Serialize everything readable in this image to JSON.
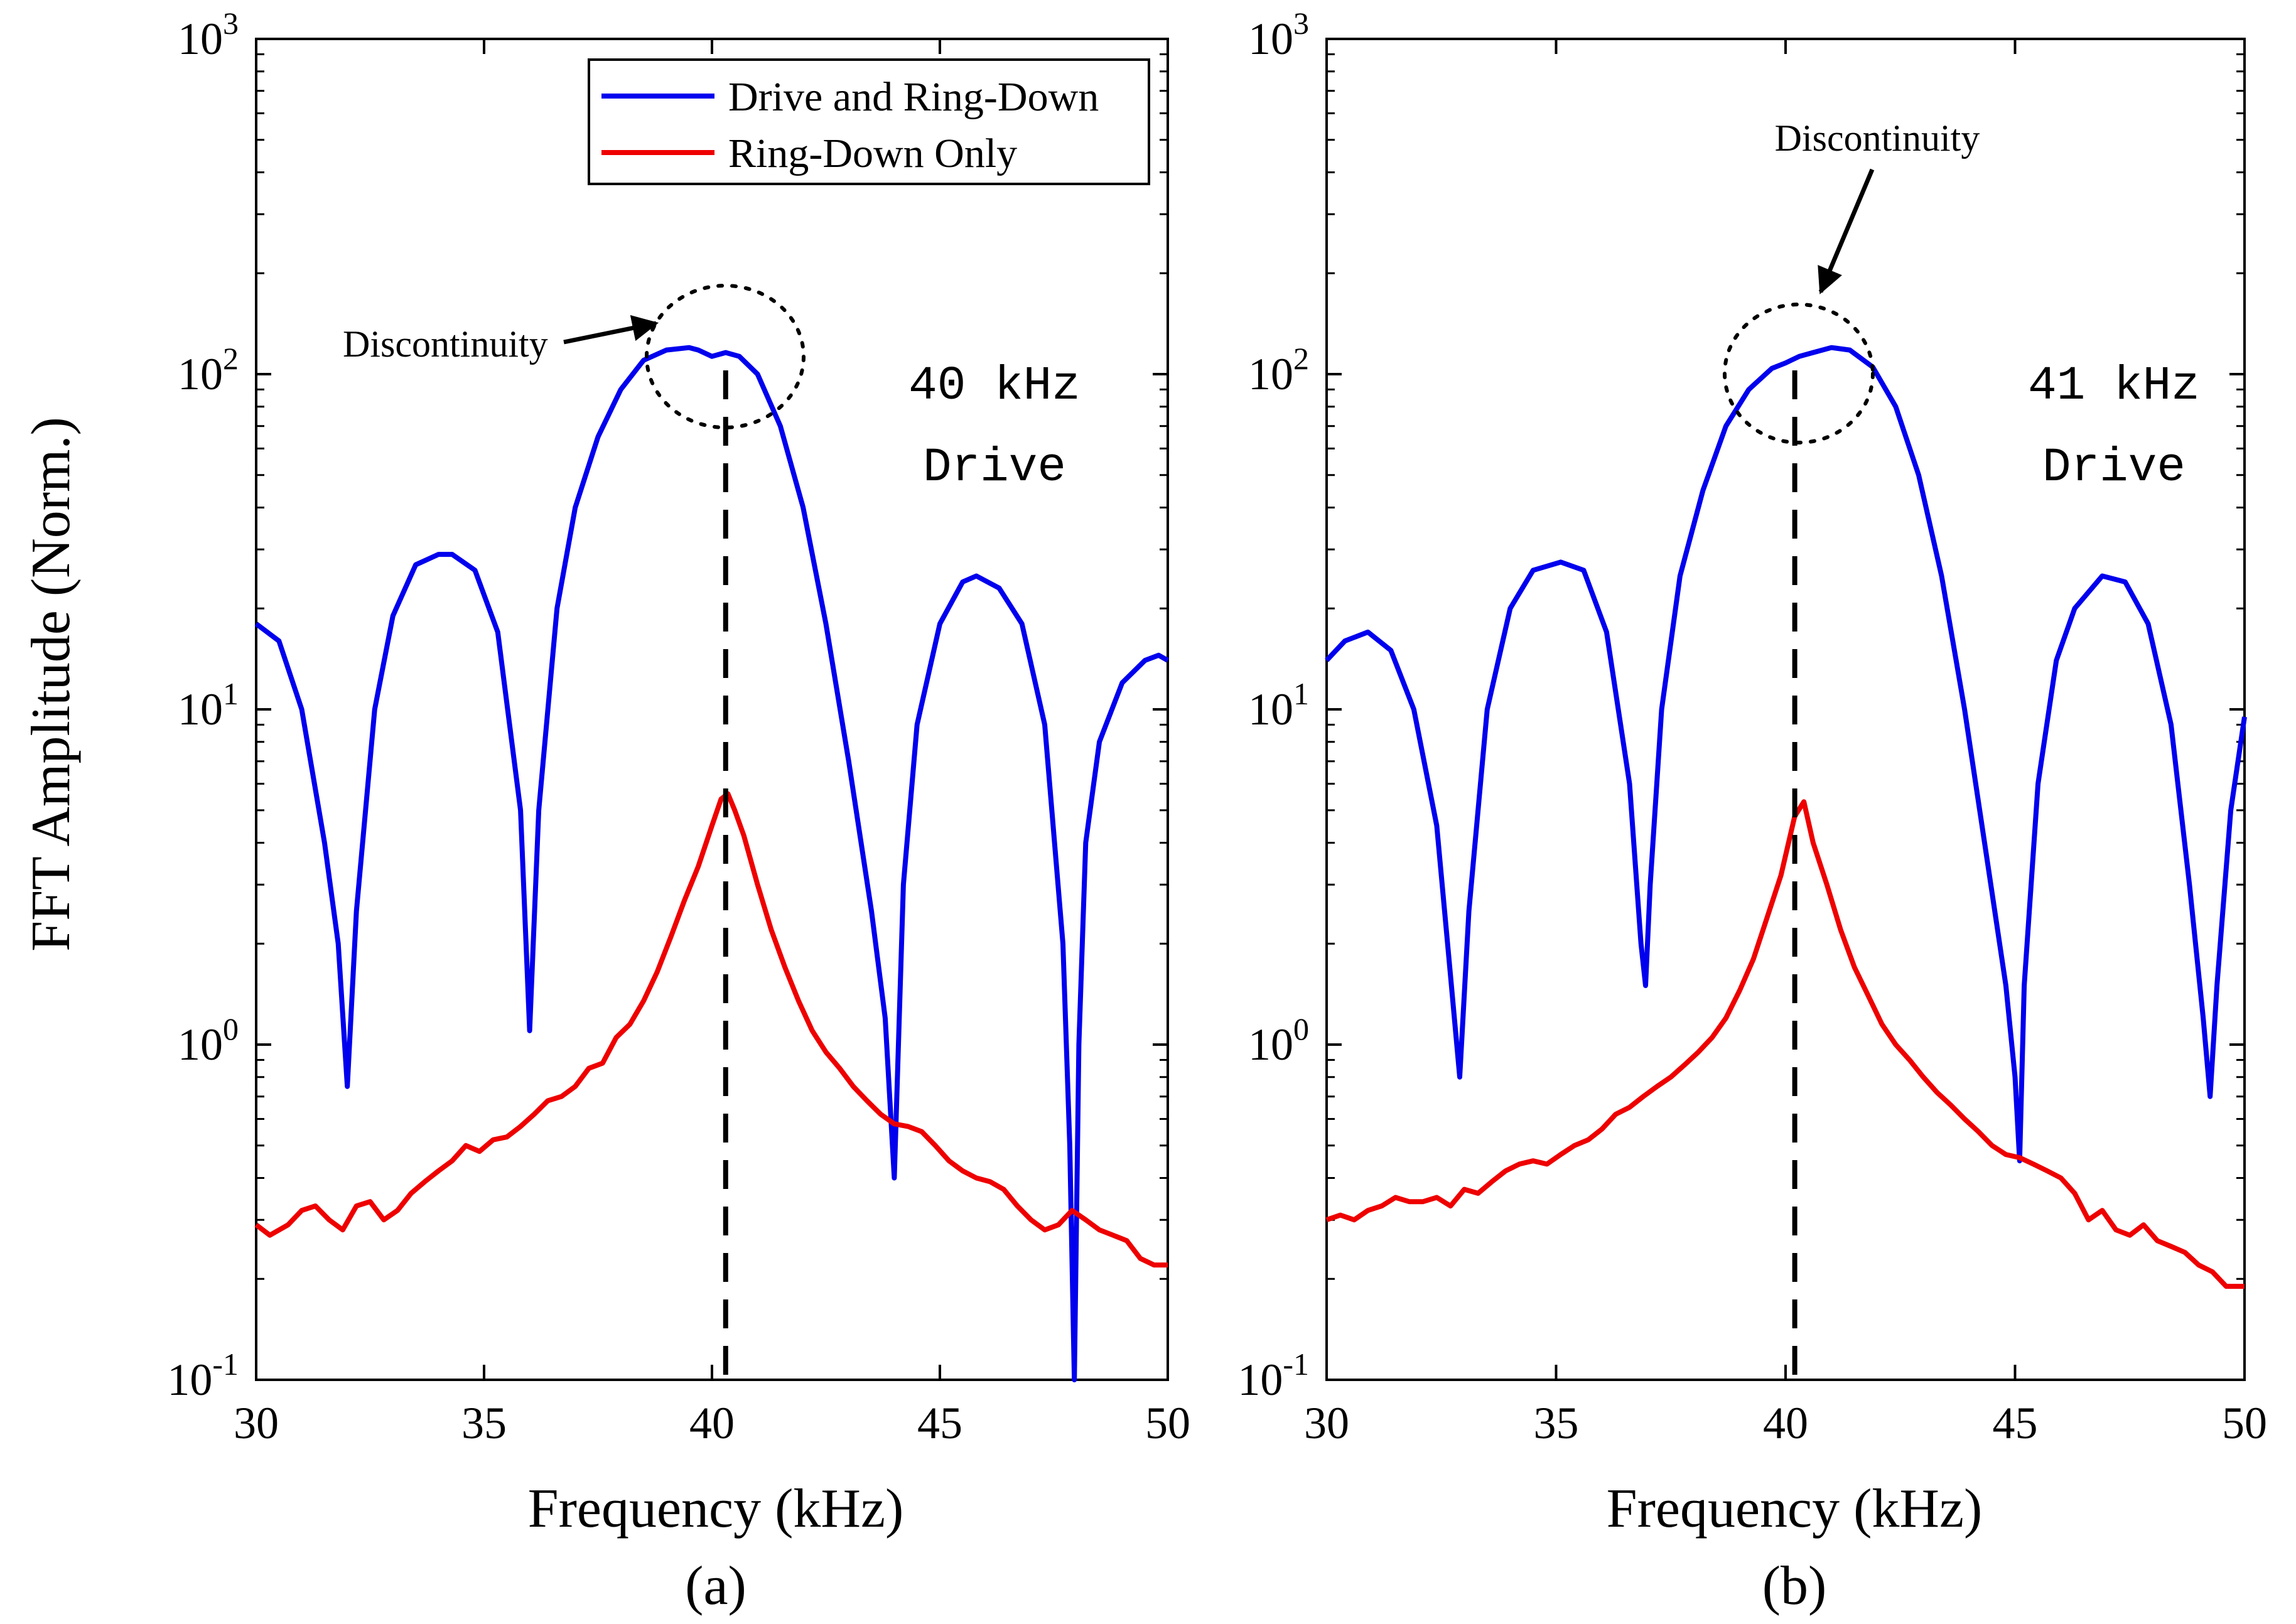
{
  "y_axis_label": "FFT Amplitude (Norm.)",
  "x_axis_label": "Frequency (kHz)",
  "legend": {
    "drive": "Drive and Ring-Down",
    "ringdown": "Ring-Down Only"
  },
  "colors": {
    "drive": "#0000ee",
    "ringdown": "#ee0000"
  },
  "chart_data": [
    {
      "type": "line",
      "panel_label": "(a)",
      "xlabel": "Frequency (kHz)",
      "ylabel": "FFT Amplitude (Norm.)",
      "xlim": [
        30,
        50
      ],
      "ylim": [
        0.1,
        1000
      ],
      "yscale": "log",
      "xticks": [
        30,
        35,
        40,
        45,
        50
      ],
      "yticks": [
        {
          "base": "10",
          "exp": "-1"
        },
        {
          "base": "10",
          "exp": "0"
        },
        {
          "base": "10",
          "exp": "1"
        },
        {
          "base": "10",
          "exp": "2"
        },
        {
          "base": "10",
          "exp": "3"
        }
      ],
      "drive_label": [
        "40 kHz",
        "Drive"
      ],
      "annotation": "Discontinuity",
      "dashed_line_x": 40.3,
      "series": [
        {
          "name": "Drive and Ring-Down",
          "color": "#0000ee",
          "x": [
            30,
            30.5,
            31,
            31.5,
            31.8,
            32.0,
            32.2,
            32.6,
            33,
            33.5,
            34,
            34.3,
            34.8,
            35.3,
            35.8,
            36.0,
            36.2,
            36.6,
            37,
            37.5,
            38,
            38.5,
            39,
            39.5,
            39.7,
            40.0,
            40.3,
            40.6,
            41,
            41.5,
            42,
            42.5,
            43,
            43.5,
            43.8,
            44.0,
            44.2,
            44.5,
            45,
            45.5,
            45.8,
            46.3,
            46.8,
            47.3,
            47.7,
            47.85,
            47.95,
            48.05,
            48.2,
            48.5,
            49,
            49.5,
            49.8,
            50
          ],
          "values": [
            18,
            16,
            10,
            4,
            2,
            0.75,
            2.5,
            10,
            19,
            27,
            29,
            29,
            26,
            17,
            5,
            1.1,
            5,
            20,
            40,
            65,
            90,
            110,
            118,
            120,
            118,
            113,
            116,
            113,
            100,
            70,
            40,
            18,
            7,
            2.5,
            1.2,
            0.4,
            3,
            9,
            18,
            24,
            25,
            23,
            18,
            9,
            2,
            0.5,
            0.1,
            1,
            4,
            8,
            12,
            14,
            14.5,
            14
          ]
        },
        {
          "name": "Ring-Down Only",
          "color": "#ee0000",
          "x": [
            30,
            30.3,
            30.7,
            31,
            31.3,
            31.6,
            31.9,
            32.2,
            32.5,
            32.8,
            33.1,
            33.4,
            33.7,
            34,
            34.3,
            34.6,
            34.9,
            35.2,
            35.5,
            35.8,
            36.1,
            36.4,
            36.7,
            37,
            37.3,
            37.6,
            37.9,
            38.2,
            38.5,
            38.8,
            39.1,
            39.4,
            39.7,
            40,
            40.2,
            40.35,
            40.5,
            40.7,
            41,
            41.3,
            41.6,
            41.9,
            42.2,
            42.5,
            42.8,
            43.1,
            43.4,
            43.7,
            44,
            44.3,
            44.6,
            44.9,
            45.2,
            45.5,
            45.8,
            46.1,
            46.4,
            46.7,
            47,
            47.3,
            47.6,
            47.9,
            48.2,
            48.5,
            48.8,
            49.1,
            49.4,
            49.7,
            50
          ],
          "values": [
            0.29,
            0.27,
            0.29,
            0.32,
            0.33,
            0.3,
            0.28,
            0.33,
            0.34,
            0.3,
            0.32,
            0.36,
            0.39,
            0.42,
            0.45,
            0.5,
            0.48,
            0.52,
            0.53,
            0.57,
            0.62,
            0.68,
            0.7,
            0.75,
            0.85,
            0.88,
            1.05,
            1.15,
            1.35,
            1.65,
            2.1,
            2.7,
            3.4,
            4.5,
            5.4,
            5.6,
            5.0,
            4.2,
            3.0,
            2.2,
            1.7,
            1.35,
            1.1,
            0.95,
            0.85,
            0.75,
            0.68,
            0.62,
            0.58,
            0.57,
            0.55,
            0.5,
            0.45,
            0.42,
            0.4,
            0.39,
            0.37,
            0.33,
            0.3,
            0.28,
            0.29,
            0.32,
            0.3,
            0.28,
            0.27,
            0.26,
            0.23,
            0.22,
            0.22
          ]
        }
      ]
    },
    {
      "type": "line",
      "panel_label": "(b)",
      "xlabel": "Frequency (kHz)",
      "ylabel": "",
      "xlim": [
        30,
        50
      ],
      "ylim": [
        0.1,
        1000
      ],
      "yscale": "log",
      "xticks": [
        30,
        35,
        40,
        45,
        50
      ],
      "yticks": [
        {
          "base": "10",
          "exp": "-1"
        },
        {
          "base": "10",
          "exp": "0"
        },
        {
          "base": "10",
          "exp": "1"
        },
        {
          "base": "10",
          "exp": "2"
        },
        {
          "base": "10",
          "exp": "3"
        }
      ],
      "drive_label": [
        "41 kHz",
        "Drive"
      ],
      "annotation": "Discontinuity",
      "dashed_line_x": 40.2,
      "series": [
        {
          "name": "Drive and Ring-Down",
          "color": "#0000ee",
          "x": [
            30,
            30.4,
            30.9,
            31.4,
            31.9,
            32.4,
            32.7,
            32.9,
            33.1,
            33.5,
            34,
            34.5,
            35.1,
            35.6,
            36.1,
            36.6,
            36.85,
            36.95,
            37.05,
            37.3,
            37.7,
            38.2,
            38.7,
            39.2,
            39.7,
            40.0,
            40.3,
            40.6,
            41,
            41.4,
            41.9,
            42.4,
            42.9,
            43.4,
            43.9,
            44.4,
            44.8,
            45.0,
            45.1,
            45.2,
            45.5,
            45.9,
            46.3,
            46.9,
            47.4,
            47.9,
            48.4,
            48.8,
            49.1,
            49.25,
            49.4,
            49.7,
            50
          ],
          "values": [
            14,
            16,
            17,
            15,
            10,
            4.5,
            1.6,
            0.8,
            2.5,
            10,
            20,
            26,
            27.5,
            26,
            17,
            6,
            2,
            1.5,
            3,
            10,
            25,
            45,
            70,
            90,
            104,
            108,
            113,
            116,
            120,
            118,
            105,
            80,
            50,
            25,
            10,
            3.5,
            1.5,
            0.8,
            0.45,
            1.5,
            6,
            14,
            20,
            25,
            24,
            18,
            9,
            3,
            1.2,
            0.7,
            1.5,
            5,
            9.5
          ]
        },
        {
          "name": "Ring-Down Only",
          "color": "#ee0000",
          "x": [
            30,
            30.3,
            30.6,
            30.9,
            31.2,
            31.5,
            31.8,
            32.1,
            32.4,
            32.7,
            33,
            33.3,
            33.6,
            33.9,
            34.2,
            34.5,
            34.8,
            35.1,
            35.4,
            35.7,
            36,
            36.3,
            36.6,
            36.9,
            37.2,
            37.5,
            37.8,
            38.1,
            38.4,
            38.7,
            39,
            39.3,
            39.6,
            39.9,
            40.2,
            40.4,
            40.6,
            40.9,
            41.2,
            41.5,
            41.8,
            42.1,
            42.4,
            42.7,
            43,
            43.3,
            43.6,
            43.9,
            44.2,
            44.5,
            44.8,
            45.1,
            45.4,
            45.7,
            46,
            46.3,
            46.6,
            46.9,
            47.2,
            47.5,
            47.8,
            48.1,
            48.4,
            48.7,
            49,
            49.3,
            49.6,
            50
          ],
          "values": [
            0.3,
            0.31,
            0.3,
            0.32,
            0.33,
            0.35,
            0.34,
            0.34,
            0.35,
            0.33,
            0.37,
            0.36,
            0.39,
            0.42,
            0.44,
            0.45,
            0.44,
            0.47,
            0.5,
            0.52,
            0.56,
            0.62,
            0.65,
            0.7,
            0.75,
            0.8,
            0.87,
            0.95,
            1.05,
            1.2,
            1.45,
            1.8,
            2.4,
            3.2,
            4.8,
            5.3,
            4.0,
            3.0,
            2.2,
            1.7,
            1.4,
            1.15,
            1.0,
            0.9,
            0.8,
            0.72,
            0.66,
            0.6,
            0.55,
            0.5,
            0.47,
            0.46,
            0.44,
            0.42,
            0.4,
            0.36,
            0.3,
            0.32,
            0.28,
            0.27,
            0.29,
            0.26,
            0.25,
            0.24,
            0.22,
            0.21,
            0.19,
            0.19
          ]
        }
      ]
    }
  ]
}
